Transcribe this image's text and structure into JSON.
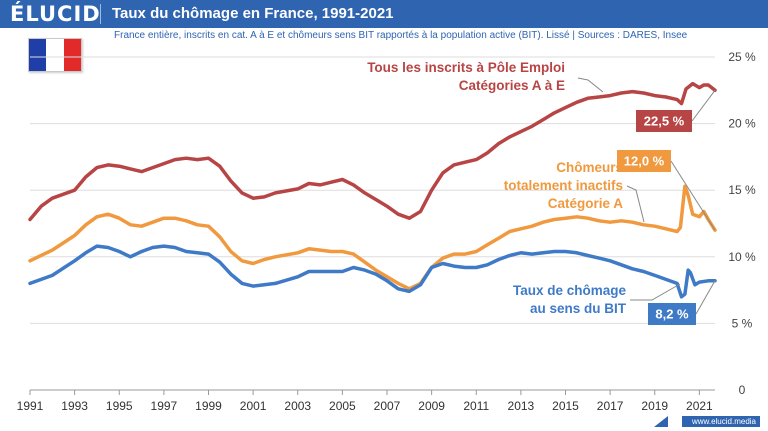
{
  "header": {
    "logo": "ÉLUCID",
    "title": "Taux du chômage en France, 1991-2021",
    "subtitle": "France entière, inscrits en cat. A à E et chômeurs sens BIT rapportés à la population active (BIT). Lissé  |  Sources : DARES, Insee"
  },
  "footer": {
    "source_url": "www.elucid.media"
  },
  "flag": {
    "icon": "france-flag-icon"
  },
  "colors": {
    "red": "#b84545",
    "orange": "#f0993e",
    "blue": "#3f7ac7",
    "brand": "#2f64b1"
  },
  "chart_data": {
    "type": "line",
    "title": "Taux du chômage en France, 1991-2021",
    "xlim": [
      1991,
      2021.7
    ],
    "ylim": [
      0,
      25
    ],
    "y_ticks": [
      0,
      5,
      10,
      15,
      20,
      25
    ],
    "y_tick_labels": [
      "0",
      "5 %",
      "10 %",
      "15 %",
      "20 %",
      "25 %"
    ],
    "x_ticks": [
      1991,
      1993,
      1995,
      1997,
      1999,
      2001,
      2003,
      2005,
      2007,
      2009,
      2011,
      2013,
      2015,
      2017,
      2019,
      2021
    ],
    "x_tick_labels": [
      "1991",
      "1993",
      "1995",
      "1997",
      "1999",
      "2001",
      "2003",
      "2005",
      "2007",
      "2009",
      "2011",
      "2013",
      "2015",
      "2017",
      "2019",
      "2021"
    ],
    "grid": "horizontal",
    "series": [
      {
        "name": "Tous les inscrits à Pôle Emploi Catégories A à E",
        "label_lines": [
          "Tous les inscrits à Pôle Emploi",
          "Catégories A à E"
        ],
        "color": "#b84545",
        "last_label": "22,5 %",
        "points": [
          [
            1991,
            12.8
          ],
          [
            1991.5,
            13.8
          ],
          [
            1992,
            14.4
          ],
          [
            1993,
            15.0
          ],
          [
            1993.5,
            16.0
          ],
          [
            1994,
            16.7
          ],
          [
            1994.5,
            16.9
          ],
          [
            1995,
            16.8
          ],
          [
            1995.5,
            16.6
          ],
          [
            1996,
            16.4
          ],
          [
            1996.5,
            16.7
          ],
          [
            1997,
            17.0
          ],
          [
            1997.5,
            17.3
          ],
          [
            1998,
            17.4
          ],
          [
            1998.5,
            17.3
          ],
          [
            1999,
            17.4
          ],
          [
            1999.5,
            16.8
          ],
          [
            2000,
            15.7
          ],
          [
            2000.5,
            14.8
          ],
          [
            2001,
            14.4
          ],
          [
            2001.5,
            14.5
          ],
          [
            2002,
            14.8
          ],
          [
            2003,
            15.1
          ],
          [
            2003.5,
            15.5
          ],
          [
            2004,
            15.4
          ],
          [
            2004.5,
            15.6
          ],
          [
            2005,
            15.8
          ],
          [
            2005.5,
            15.4
          ],
          [
            2006,
            14.8
          ],
          [
            2006.5,
            14.3
          ],
          [
            2007,
            13.8
          ],
          [
            2007.5,
            13.2
          ],
          [
            2008,
            12.9
          ],
          [
            2008.5,
            13.4
          ],
          [
            2009,
            15.0
          ],
          [
            2009.5,
            16.3
          ],
          [
            2010,
            16.9
          ],
          [
            2010.5,
            17.1
          ],
          [
            2011,
            17.3
          ],
          [
            2011.5,
            17.8
          ],
          [
            2012,
            18.5
          ],
          [
            2012.5,
            19.0
          ],
          [
            2013,
            19.4
          ],
          [
            2013.5,
            19.8
          ],
          [
            2014,
            20.3
          ],
          [
            2014.5,
            20.8
          ],
          [
            2015,
            21.2
          ],
          [
            2015.5,
            21.6
          ],
          [
            2016,
            21.9
          ],
          [
            2016.5,
            22.0
          ],
          [
            2017,
            22.1
          ],
          [
            2017.5,
            22.3
          ],
          [
            2018,
            22.4
          ],
          [
            2018.5,
            22.3
          ],
          [
            2019,
            22.1
          ],
          [
            2019.5,
            22.0
          ],
          [
            2020,
            21.8
          ],
          [
            2020.2,
            21.5
          ],
          [
            2020.4,
            22.6
          ],
          [
            2020.7,
            23.0
          ],
          [
            2021,
            22.7
          ],
          [
            2021.2,
            22.9
          ],
          [
            2021.4,
            22.9
          ],
          [
            2021.7,
            22.5
          ]
        ]
      },
      {
        "name": "Chômeurs totalement inactifs Catégorie A",
        "label_lines": [
          "Chômeurs",
          "totalement inactifs",
          "Catégorie A"
        ],
        "color": "#f0993e",
        "last_label": "12,0 %",
        "points": [
          [
            1991,
            9.7
          ],
          [
            1992,
            10.5
          ],
          [
            1993,
            11.6
          ],
          [
            1993.5,
            12.4
          ],
          [
            1994,
            13.0
          ],
          [
            1994.5,
            13.2
          ],
          [
            1995,
            12.9
          ],
          [
            1995.5,
            12.4
          ],
          [
            1996,
            12.3
          ],
          [
            1996.5,
            12.6
          ],
          [
            1997,
            12.9
          ],
          [
            1997.5,
            12.9
          ],
          [
            1998,
            12.7
          ],
          [
            1998.5,
            12.4
          ],
          [
            1999,
            12.3
          ],
          [
            1999.5,
            11.5
          ],
          [
            2000,
            10.4
          ],
          [
            2000.5,
            9.7
          ],
          [
            2001,
            9.5
          ],
          [
            2001.5,
            9.8
          ],
          [
            2002,
            10.0
          ],
          [
            2003,
            10.3
          ],
          [
            2003.5,
            10.6
          ],
          [
            2004,
            10.5
          ],
          [
            2004.5,
            10.4
          ],
          [
            2005,
            10.4
          ],
          [
            2005.5,
            10.2
          ],
          [
            2006,
            9.6
          ],
          [
            2006.5,
            9.0
          ],
          [
            2007,
            8.5
          ],
          [
            2007.5,
            8.0
          ],
          [
            2008,
            7.6
          ],
          [
            2008.5,
            8.0
          ],
          [
            2009,
            9.2
          ],
          [
            2009.5,
            9.9
          ],
          [
            2010,
            10.2
          ],
          [
            2010.5,
            10.2
          ],
          [
            2011,
            10.4
          ],
          [
            2011.5,
            10.9
          ],
          [
            2012,
            11.4
          ],
          [
            2012.5,
            11.9
          ],
          [
            2013,
            12.1
          ],
          [
            2013.5,
            12.3
          ],
          [
            2014,
            12.6
          ],
          [
            2014.5,
            12.8
          ],
          [
            2015,
            12.9
          ],
          [
            2015.5,
            13.0
          ],
          [
            2016,
            12.9
          ],
          [
            2016.5,
            12.7
          ],
          [
            2017,
            12.6
          ],
          [
            2017.5,
            12.7
          ],
          [
            2018,
            12.6
          ],
          [
            2018.5,
            12.4
          ],
          [
            2019,
            12.3
          ],
          [
            2019.5,
            12.1
          ],
          [
            2020,
            11.9
          ],
          [
            2020.15,
            12.2
          ],
          [
            2020.35,
            15.3
          ],
          [
            2020.5,
            14.6
          ],
          [
            2020.7,
            13.2
          ],
          [
            2021,
            13.0
          ],
          [
            2021.2,
            13.4
          ],
          [
            2021.4,
            12.8
          ],
          [
            2021.7,
            12.0
          ]
        ]
      },
      {
        "name": "Taux de chômage au sens du BIT",
        "label_lines": [
          "Taux de chômage",
          "au sens du BIT"
        ],
        "color": "#3f7ac7",
        "last_label": "8,2 %",
        "points": [
          [
            1991,
            8.0
          ],
          [
            1992,
            8.6
          ],
          [
            1993,
            9.7
          ],
          [
            1993.5,
            10.3
          ],
          [
            1994,
            10.8
          ],
          [
            1994.5,
            10.7
          ],
          [
            1995,
            10.4
          ],
          [
            1995.5,
            10.0
          ],
          [
            1996,
            10.4
          ],
          [
            1996.5,
            10.7
          ],
          [
            1997,
            10.8
          ],
          [
            1997.5,
            10.7
          ],
          [
            1998,
            10.4
          ],
          [
            1998.5,
            10.3
          ],
          [
            1999,
            10.2
          ],
          [
            1999.5,
            9.6
          ],
          [
            2000,
            8.7
          ],
          [
            2000.5,
            8.0
          ],
          [
            2001,
            7.8
          ],
          [
            2001.5,
            7.9
          ],
          [
            2002,
            8.0
          ],
          [
            2003,
            8.5
          ],
          [
            2003.5,
            8.9
          ],
          [
            2004,
            8.9
          ],
          [
            2004.5,
            8.9
          ],
          [
            2005,
            8.9
          ],
          [
            2005.5,
            9.2
          ],
          [
            2006,
            9.0
          ],
          [
            2006.5,
            8.7
          ],
          [
            2007,
            8.2
          ],
          [
            2007.5,
            7.6
          ],
          [
            2008,
            7.4
          ],
          [
            2008.5,
            7.9
          ],
          [
            2009,
            9.2
          ],
          [
            2009.5,
            9.5
          ],
          [
            2010,
            9.3
          ],
          [
            2010.5,
            9.2
          ],
          [
            2011,
            9.2
          ],
          [
            2011.5,
            9.4
          ],
          [
            2012,
            9.8
          ],
          [
            2012.5,
            10.1
          ],
          [
            2013,
            10.3
          ],
          [
            2013.5,
            10.2
          ],
          [
            2014,
            10.3
          ],
          [
            2014.5,
            10.4
          ],
          [
            2015,
            10.4
          ],
          [
            2015.5,
            10.3
          ],
          [
            2016,
            10.1
          ],
          [
            2016.5,
            9.9
          ],
          [
            2017,
            9.7
          ],
          [
            2017.5,
            9.4
          ],
          [
            2018,
            9.1
          ],
          [
            2018.5,
            8.9
          ],
          [
            2019,
            8.6
          ],
          [
            2019.5,
            8.3
          ],
          [
            2020,
            8.0
          ],
          [
            2020.2,
            7.0
          ],
          [
            2020.35,
            7.2
          ],
          [
            2020.5,
            9.0
          ],
          [
            2020.6,
            8.8
          ],
          [
            2020.8,
            7.9
          ],
          [
            2021,
            8.1
          ],
          [
            2021.4,
            8.2
          ],
          [
            2021.7,
            8.2
          ]
        ]
      }
    ]
  }
}
